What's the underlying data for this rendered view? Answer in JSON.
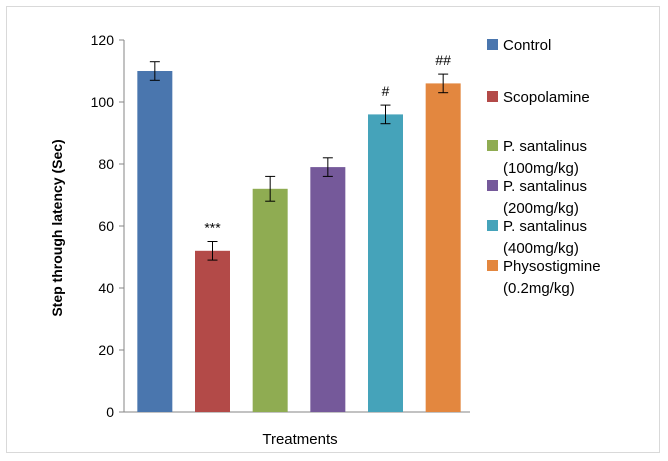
{
  "chart_data": {
    "type": "bar",
    "categories": [
      "Control",
      "Scopolamine",
      "P. santalinus (100mg/kg)",
      "P. santalinus (200mg/kg)",
      "P. santalinus (400mg/kg)",
      "Physostigmine (0.2mg/kg)"
    ],
    "values": [
      110,
      52,
      72,
      79,
      96,
      106
    ],
    "errors": [
      3,
      3,
      4,
      3,
      3,
      3
    ],
    "colors": [
      "#4a76ae",
      "#b34a48",
      "#8fac52",
      "#75599a",
      "#45a3ba",
      "#e3873f"
    ],
    "annotations": [
      "",
      "***",
      "",
      "",
      "#",
      "##"
    ],
    "legend": [
      [
        "Control"
      ],
      [
        "Scopolamine"
      ],
      [
        "P. santalinus",
        "(100mg/kg)"
      ],
      [
        "P. santalinus",
        "(200mg/kg)"
      ],
      [
        "P. santalinus",
        "(400mg/kg)"
      ],
      [
        "Physostigmine",
        "(0.2mg/kg)"
      ]
    ],
    "xlabel": "Treatments",
    "ylabel": "Step through latency (Sec)",
    "ylim": [
      0,
      120
    ],
    "yticks": [
      0,
      20,
      40,
      60,
      80,
      100,
      120
    ],
    "legend_position": "right",
    "grid": false
  }
}
